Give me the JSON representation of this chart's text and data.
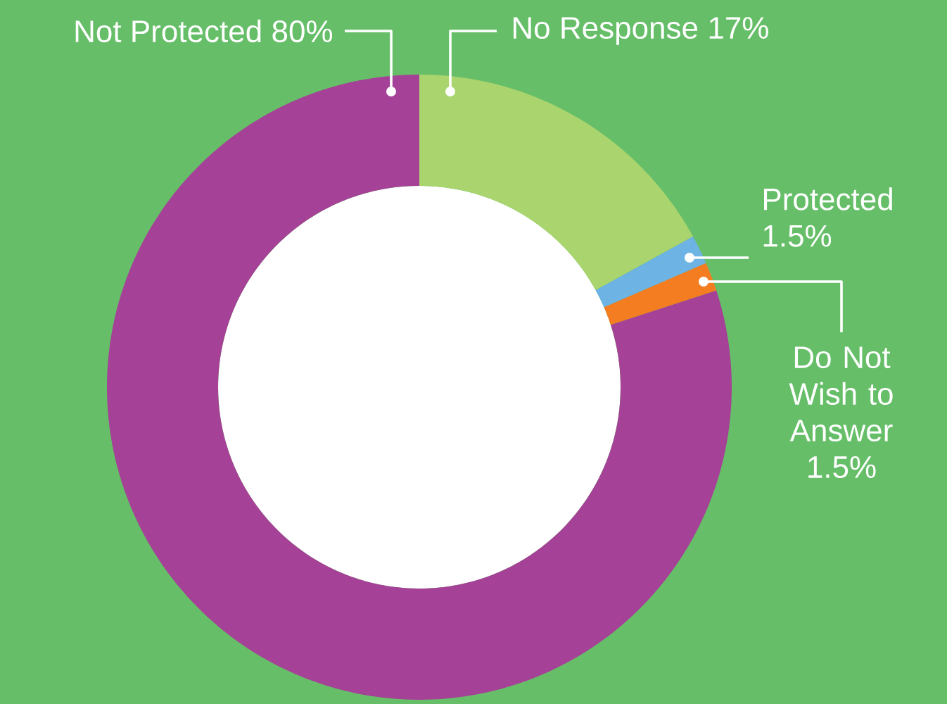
{
  "chart_data": {
    "type": "donut",
    "categories": [
      "No Response",
      "Protected",
      "Do Not Wish to Answer",
      "Not Protected"
    ],
    "values": [
      17,
      1.5,
      1.5,
      80
    ],
    "value_labels": [
      "17%",
      "1.5%",
      "1.5%",
      "80%"
    ],
    "colors": [
      "#aad46e",
      "#6db3e3",
      "#f47c21",
      "#a54196"
    ]
  }
}
